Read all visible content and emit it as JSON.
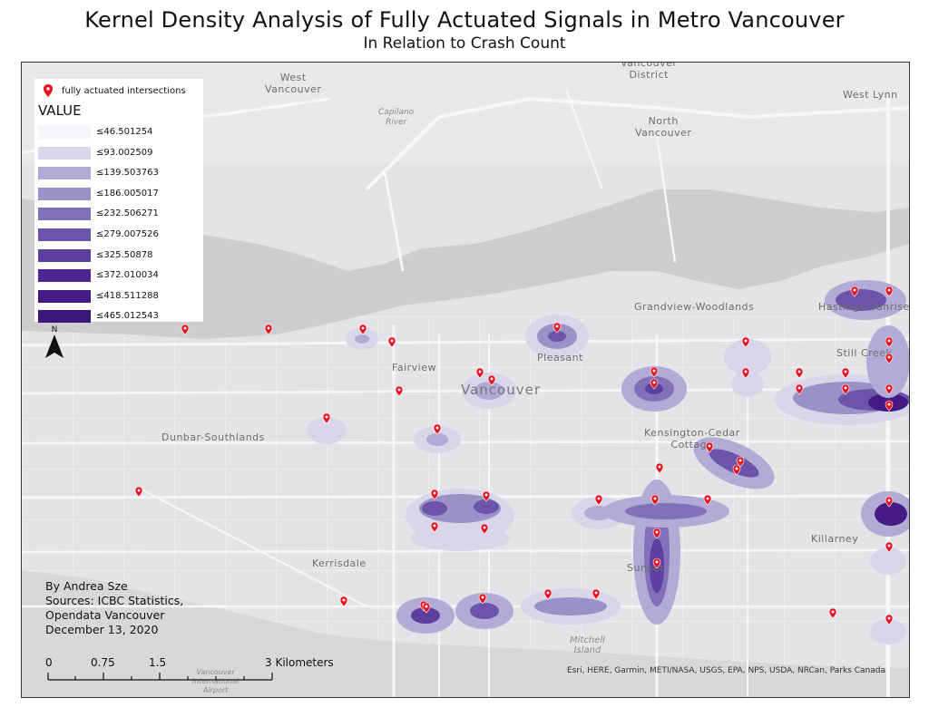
{
  "title": "Kernel Density Analysis of Fully Actuated Signals in Metro Vancouver",
  "subtitle": "In Relation to Crash Count",
  "legend": {
    "marker_label": "fully actuated intersections",
    "value_title": "VALUE",
    "classes": [
      {
        "label": "≤46.501254",
        "color": "#f6f5fa"
      },
      {
        "label": "≤93.002509",
        "color": "#dad6ea"
      },
      {
        "label": "≤139.503763",
        "color": "#b2abd5"
      },
      {
        "label": "≤186.005017",
        "color": "#9a91c7"
      },
      {
        "label": "≤232.506271",
        "color": "#8071b8"
      },
      {
        "label": "≤279.007526",
        "color": "#6c54ab"
      },
      {
        "label": "≤325.50878",
        "color": "#5c3f9f"
      },
      {
        "label": "≤372.010034",
        "color": "#4e2694"
      },
      {
        "label": "≤418.511288",
        "color": "#441b85"
      },
      {
        "label": "≤465.012543",
        "color": "#3c1677"
      }
    ]
  },
  "north_label": "N",
  "credits": {
    "author": "By Andrea Sze",
    "sources_1": "Sources: ICBC Statistics,",
    "sources_2": "Opendata Vancouver",
    "date": "December 13, 2020"
  },
  "scalebar": {
    "ticks": [
      "0",
      "0.75",
      "1.5",
      "3 Kilometers"
    ]
  },
  "attribution": "Esri, HERE, Garmin, METI/NASA, USGS, EPA, NPS, USDA, NRCan, Parks Canada",
  "places": {
    "west_vancouver": [
      "West",
      "Vancouver"
    ],
    "north_vancouver_district": [
      "Vancouver",
      "District"
    ],
    "north_vancouver": [
      "North",
      "Vancouver"
    ],
    "west_lynn": "West Lynn",
    "capilano_river": [
      "Capilano",
      "River"
    ],
    "grandview": "Grandview-Woodlands",
    "hastings": "Hastings-Sunrise",
    "still_creek": "Still Creek",
    "pleasant": "Pleasant",
    "fairview": "Fairview",
    "vancouver": "Vancouver",
    "kensington": [
      "Kensington-Cedar",
      "Cottage"
    ],
    "dunbar": "Dunbar-Southlands",
    "kerrisdale": "Kerrisdale",
    "killarney": "Killarney",
    "sunset": "Sunset",
    "mitchell": [
      "Mitchell",
      "Island"
    ],
    "airport": [
      "Vancouver",
      "International",
      "Airport"
    ]
  },
  "colors": {
    "marker": "#e8101c",
    "land": "#e4e4e6",
    "water": "#cdcdd0",
    "road": "#f7f7f8"
  }
}
